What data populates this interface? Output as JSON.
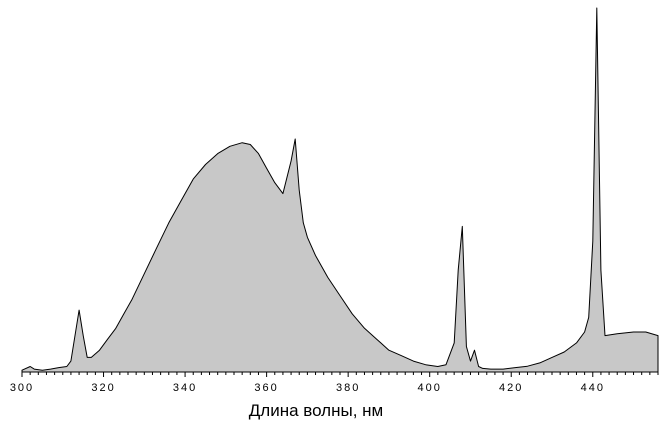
{
  "chart_data": {
    "type": "area",
    "title": "",
    "xlabel": "Длина волны, нм",
    "ylabel": "",
    "xlim": [
      300,
      456
    ],
    "ylim": [
      0,
      100
    ],
    "x_ticks": [
      300,
      320,
      340,
      360,
      380,
      400,
      420,
      440
    ],
    "grid": false,
    "legend": "none",
    "colors": {
      "fill": "#c8c8c8",
      "stroke": "#000000",
      "axis": "#000000"
    },
    "series": [
      {
        "x": [
          300,
          302,
          303,
          305,
          307,
          309,
          311,
          312,
          313,
          314,
          315,
          316,
          317,
          319,
          321,
          323,
          325,
          327,
          330,
          333,
          336,
          339,
          342,
          345,
          348,
          351,
          354,
          356,
          358,
          360,
          362,
          364,
          366,
          367,
          368,
          369,
          370,
          372,
          375,
          378,
          381,
          384,
          387,
          390,
          393,
          396,
          399,
          402,
          404,
          406,
          407,
          408,
          409,
          410,
          411,
          412,
          413,
          415,
          418,
          421,
          424,
          427,
          430,
          433,
          436,
          438,
          439,
          440,
          441,
          442,
          443,
          446,
          450,
          453,
          456
        ],
        "y": [
          0.5,
          1.5,
          0.8,
          0.5,
          0.8,
          1.2,
          1.5,
          3,
          10,
          17,
          10,
          4,
          4,
          6,
          9,
          12,
          16,
          20,
          27,
          34,
          41,
          47,
          53,
          57,
          60,
          62,
          63,
          62.5,
          60,
          56,
          52,
          49,
          58,
          64,
          50,
          41,
          37,
          32,
          26,
          21,
          16,
          12,
          9,
          6,
          4.5,
          3,
          2,
          1.5,
          2,
          8,
          28,
          40,
          7,
          3,
          6,
          1.5,
          1,
          0.8,
          0.8,
          1.2,
          1.6,
          2.5,
          4,
          5.5,
          8,
          11,
          15,
          36,
          100,
          28,
          10,
          10.5,
          11,
          11,
          10
        ]
      }
    ]
  }
}
